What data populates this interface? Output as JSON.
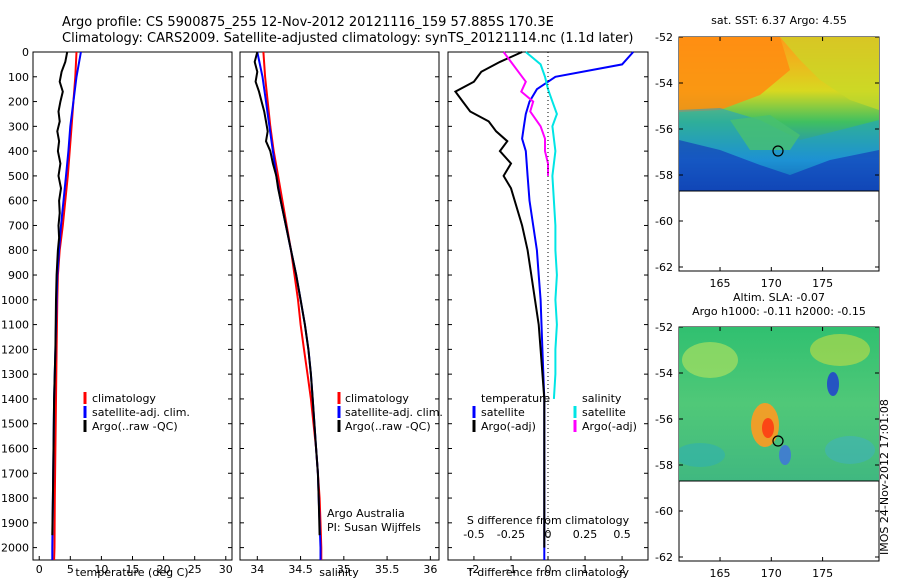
{
  "title": {
    "line1": "Argo profile: CS 5900875_255 12-Nov-2012 20121116_159 57.885S 170.3E",
    "line2": "Climatology: CARS2009. Satellite-adjusted climatology: synTS_20121114.nc (1.1d later)"
  },
  "depth_ticks": [
    "0",
    "100",
    "200",
    "300",
    "400",
    "500",
    "600",
    "700",
    "800",
    "900",
    "1000",
    "1100",
    "1200",
    "1300",
    "1400",
    "1500",
    "1600",
    "1700",
    "1800",
    "1900",
    "2000"
  ],
  "colors": {
    "climatology": "#ff0000",
    "satellite": "#0000ff",
    "argo": "#000000",
    "sat_salinity": "#00e5e5",
    "argo_salinity_adj": "#ff00ff"
  },
  "chart_data": [
    {
      "type": "line",
      "panel": "temperature",
      "xlabel": "temperature (deg C)",
      "ylim": [
        2050,
        0
      ],
      "xlim": [
        -1,
        31
      ],
      "xticks": [
        "0",
        "5",
        "10",
        "15",
        "20",
        "25",
        "30"
      ],
      "legend": [
        "climatology",
        "satellite-adj. clim.",
        "Argo(..raw -QC)"
      ],
      "series": [
        {
          "name": "climatology",
          "depth": [
            0,
            100,
            200,
            300,
            400,
            500,
            600,
            700,
            800,
            900,
            1000,
            1200,
            1400,
            1600,
            1800,
            2000,
            2050
          ],
          "values": [
            6.0,
            5.8,
            5.5,
            5.2,
            4.9,
            4.6,
            4.2,
            3.8,
            3.3,
            3.0,
            2.9,
            2.8,
            2.7,
            2.6,
            2.5,
            2.45,
            2.4
          ]
        },
        {
          "name": "satellite-adj. clim.",
          "depth": [
            0,
            100,
            200,
            300,
            400,
            500,
            600,
            700,
            800,
            900,
            1000,
            1200,
            1400,
            1600,
            1800,
            2000,
            2050
          ],
          "values": [
            6.7,
            6.0,
            5.5,
            5.0,
            4.7,
            4.3,
            3.9,
            3.5,
            3.2,
            2.9,
            2.8,
            2.6,
            2.4,
            2.3,
            2.2,
            2.1,
            2.1
          ]
        },
        {
          "name": "Argo(..raw -QC)",
          "depth": [
            0,
            40,
            80,
            120,
            160,
            200,
            240,
            280,
            320,
            360,
            400,
            450,
            500,
            550,
            600,
            650,
            700,
            750,
            800,
            900,
            1000,
            1200,
            1400,
            1600,
            1800,
            1950
          ],
          "values": [
            4.5,
            4.2,
            3.6,
            3.3,
            3.8,
            3.4,
            3.1,
            3.3,
            2.9,
            3.2,
            3.0,
            3.4,
            3.1,
            3.5,
            3.2,
            3.3,
            3.1,
            3.2,
            3.0,
            2.8,
            2.7,
            2.6,
            2.4,
            2.3,
            2.2,
            2.1
          ]
        }
      ]
    },
    {
      "type": "line",
      "panel": "salinity",
      "xlabel": "salinity",
      "ylim": [
        2050,
        0
      ],
      "xlim": [
        33.8,
        36.1
      ],
      "xticks": [
        "34",
        "34.5",
        "35",
        "35.5",
        "36"
      ],
      "legend": [
        "climatology",
        "satellite-adj. clim.",
        "Argo(..raw -QC)"
      ],
      "annotation": [
        "Argo Australia",
        "PI: Susan Wijffels"
      ],
      "series": [
        {
          "name": "climatology",
          "depth": [
            0,
            100,
            200,
            300,
            400,
            500,
            600,
            700,
            800,
            900,
            1000,
            1100,
            1200,
            1300,
            1400,
            1500,
            1600,
            1700,
            1800,
            1900,
            2000,
            2050
          ],
          "values": [
            34.07,
            34.09,
            34.12,
            34.15,
            34.19,
            34.24,
            34.29,
            34.34,
            34.39,
            34.43,
            34.47,
            34.5,
            34.54,
            34.58,
            34.62,
            34.65,
            34.68,
            34.7,
            34.72,
            34.73,
            34.74,
            34.74
          ]
        },
        {
          "name": "satellite-adj. clim.",
          "depth": [
            0,
            100,
            200,
            300,
            400,
            500,
            600,
            700,
            800,
            900,
            1000,
            1100,
            1200,
            1300,
            1400,
            1500,
            1600,
            1700,
            1800,
            1900,
            2000,
            2050
          ],
          "values": [
            34.0,
            34.06,
            34.1,
            34.14,
            34.18,
            34.22,
            34.27,
            34.33,
            34.39,
            34.45,
            34.5,
            34.55,
            34.59,
            34.62,
            34.64,
            34.66,
            34.68,
            34.7,
            34.71,
            34.72,
            34.73,
            34.73
          ]
        },
        {
          "name": "Argo(..raw -QC)",
          "depth": [
            0,
            40,
            80,
            120,
            160,
            200,
            240,
            280,
            320,
            360,
            400,
            450,
            500,
            550,
            600,
            650,
            700,
            800,
            900,
            1000,
            1100,
            1200,
            1300,
            1400,
            1500,
            1600,
            1700,
            1800,
            1950
          ],
          "values": [
            34.0,
            33.97,
            34.0,
            33.98,
            34.02,
            34.05,
            34.08,
            34.1,
            34.12,
            34.1,
            34.15,
            34.18,
            34.22,
            34.24,
            34.27,
            34.3,
            34.33,
            34.39,
            34.45,
            34.5,
            34.55,
            34.59,
            34.62,
            34.64,
            34.66,
            34.68,
            34.7,
            34.71,
            34.72
          ]
        }
      ]
    },
    {
      "type": "line",
      "panel": "difference",
      "xlabel": "T difference from climatology",
      "xlabel_top": "S difference from climatology",
      "ylim": [
        2050,
        0
      ],
      "xlim": [
        -2.7,
        2.7
      ],
      "xticks": [
        "-2",
        "-1",
        "0",
        "1",
        "2"
      ],
      "xticks_top": [
        "-0.5",
        "-0.25",
        "0",
        "0.25",
        "0.5"
      ],
      "legend": {
        "temperature_title": "temperature",
        "salinity_title": "salinity",
        "items": [
          "satellite",
          "Argo(-adj)",
          "satellite",
          "Argo(-adj)"
        ]
      },
      "series": [
        {
          "name": "satellite",
          "variable": "temperature",
          "depth": [
            0,
            50,
            100,
            150,
            200,
            250,
            300,
            350,
            400,
            500,
            600,
            700,
            800,
            900,
            1000,
            1200,
            1400,
            1600,
            1800,
            2000,
            2050
          ],
          "values": [
            2.3,
            2.0,
            0.2,
            -0.3,
            -0.5,
            -0.6,
            -0.65,
            -0.7,
            -0.6,
            -0.55,
            -0.5,
            -0.4,
            -0.3,
            -0.25,
            -0.2,
            -0.15,
            -0.1,
            -0.1,
            -0.1,
            -0.1,
            -0.1
          ]
        },
        {
          "name": "Argo(-adj)",
          "variable": "temperature",
          "depth": [
            0,
            40,
            80,
            120,
            160,
            200,
            240,
            280,
            320,
            360,
            400,
            450,
            500,
            550,
            600,
            700,
            800,
            900,
            1000,
            1100,
            1200,
            1400,
            1600,
            1800,
            2000
          ],
          "values": [
            -0.7,
            -1.3,
            -1.8,
            -2.0,
            -2.5,
            -2.3,
            -2.1,
            -1.6,
            -1.4,
            -1.1,
            -1.3,
            -1.0,
            -1.2,
            -1.0,
            -0.9,
            -0.7,
            -0.55,
            -0.45,
            -0.35,
            -0.25,
            -0.2,
            -0.1,
            -0.1,
            -0.1,
            -0.1
          ]
        },
        {
          "name": "satellite",
          "variable": "salinity",
          "depth": [
            0,
            50,
            100,
            150,
            200,
            250,
            300,
            350,
            400,
            500,
            600,
            700,
            800,
            900,
            1000,
            1100,
            1200,
            1300,
            1400
          ],
          "values": [
            -0.15,
            -0.05,
            -0.02,
            0.0,
            0.03,
            0.06,
            0.03,
            0.04,
            0.05,
            0.03,
            0.04,
            0.05,
            0.05,
            0.06,
            0.05,
            0.06,
            0.05,
            0.05,
            0.04
          ]
        },
        {
          "name": "Argo(-adj)",
          "variable": "salinity",
          "depth": [
            0,
            40,
            80,
            120,
            160,
            200,
            240,
            300,
            350,
            400,
            450,
            500
          ],
          "values": [
            -0.3,
            -0.25,
            -0.2,
            -0.15,
            -0.18,
            -0.1,
            -0.12,
            -0.05,
            -0.02,
            -0.02,
            0.0,
            0.0
          ]
        }
      ]
    }
  ],
  "maps": {
    "sst": {
      "title": "sat. SST: 6.37 Argo: 4.55",
      "yticks": [
        "-52",
        "-54",
        "-56",
        "-58",
        "-60",
        "-62"
      ],
      "xticks": [
        "165",
        "170",
        "175"
      ]
    },
    "sla": {
      "title1": "Altim. SLA: -0.07",
      "title2": "Argo h1000: -0.11 h2000: -0.15",
      "yticks": [
        "-52",
        "-54",
        "-56",
        "-58",
        "-60",
        "-62"
      ],
      "xticks": [
        "165",
        "170",
        "175"
      ]
    },
    "float_position": {
      "lon": 170.3,
      "lat": -57.885
    }
  },
  "watermark": "IMOS 24-Nov-2012 17:01:08"
}
